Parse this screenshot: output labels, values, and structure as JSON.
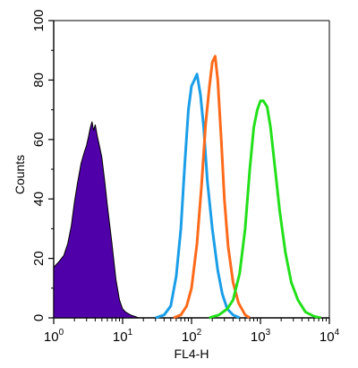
{
  "chart_data": {
    "type": "histogram",
    "xlabel": "FL4-H",
    "ylabel": "Counts",
    "xscale": "log",
    "xlim": [
      1,
      10000
    ],
    "ylim": [
      0,
      100
    ],
    "x_ticks": [
      {
        "base": "10",
        "exp": "0"
      },
      {
        "base": "10",
        "exp": "1"
      },
      {
        "base": "10",
        "exp": "2"
      },
      {
        "base": "10",
        "exp": "3"
      },
      {
        "base": "10",
        "exp": "4"
      }
    ],
    "y_ticks": [
      "0",
      "20",
      "40",
      "60",
      "80",
      "100"
    ],
    "grid": false,
    "series": [
      {
        "color": "#5000a8",
        "filled": true,
        "points": [
          [
            1.0,
            17
          ],
          [
            1.2,
            19
          ],
          [
            1.4,
            21
          ],
          [
            1.6,
            25
          ],
          [
            1.8,
            31
          ],
          [
            2.0,
            39
          ],
          [
            2.2,
            45
          ],
          [
            2.5,
            52
          ],
          [
            2.8,
            56
          ],
          [
            3.0,
            58
          ],
          [
            3.2,
            61
          ],
          [
            3.4,
            64
          ],
          [
            3.6,
            66
          ],
          [
            3.8,
            63
          ],
          [
            4.0,
            65
          ],
          [
            4.3,
            61
          ],
          [
            4.6,
            58
          ],
          [
            5.0,
            54
          ],
          [
            5.5,
            46
          ],
          [
            6.0,
            38
          ],
          [
            7.0,
            25
          ],
          [
            8.0,
            13
          ],
          [
            9.0,
            6
          ],
          [
            10,
            3
          ],
          [
            11,
            2
          ],
          [
            13,
            1
          ],
          [
            15,
            0.5
          ],
          [
            17,
            0
          ]
        ]
      },
      {
        "color": "#1a9ee8",
        "filled": false,
        "points": [
          [
            30,
            0
          ],
          [
            40,
            1
          ],
          [
            50,
            4
          ],
          [
            60,
            14
          ],
          [
            70,
            30
          ],
          [
            80,
            52
          ],
          [
            90,
            70
          ],
          [
            100,
            78
          ],
          [
            110,
            80
          ],
          [
            120,
            82
          ],
          [
            135,
            75
          ],
          [
            150,
            64
          ],
          [
            170,
            46
          ],
          [
            200,
            30
          ],
          [
            240,
            16
          ],
          [
            280,
            8
          ],
          [
            330,
            3
          ],
          [
            400,
            1
          ],
          [
            500,
            0
          ]
        ]
      },
      {
        "color": "#ff6a1a",
        "filled": false,
        "points": [
          [
            55,
            0
          ],
          [
            70,
            1
          ],
          [
            85,
            4
          ],
          [
            100,
            10
          ],
          [
            120,
            25
          ],
          [
            140,
            45
          ],
          [
            160,
            65
          ],
          [
            180,
            77
          ],
          [
            200,
            86
          ],
          [
            220,
            88
          ],
          [
            240,
            80
          ],
          [
            270,
            60
          ],
          [
            300,
            40
          ],
          [
            340,
            24
          ],
          [
            400,
            12
          ],
          [
            480,
            5
          ],
          [
            600,
            1
          ],
          [
            700,
            0
          ]
        ]
      },
      {
        "color": "#22e01a",
        "filled": false,
        "points": [
          [
            180,
            0
          ],
          [
            250,
            1
          ],
          [
            330,
            3
          ],
          [
            400,
            6
          ],
          [
            500,
            15
          ],
          [
            600,
            30
          ],
          [
            700,
            50
          ],
          [
            800,
            64
          ],
          [
            900,
            70
          ],
          [
            1000,
            73
          ],
          [
            1100,
            73
          ],
          [
            1250,
            71
          ],
          [
            1400,
            64
          ],
          [
            1600,
            52
          ],
          [
            1900,
            36
          ],
          [
            2300,
            22
          ],
          [
            2800,
            12
          ],
          [
            3500,
            6
          ],
          [
            4500,
            2
          ],
          [
            6000,
            0.5
          ],
          [
            7500,
            0
          ]
        ]
      }
    ]
  }
}
